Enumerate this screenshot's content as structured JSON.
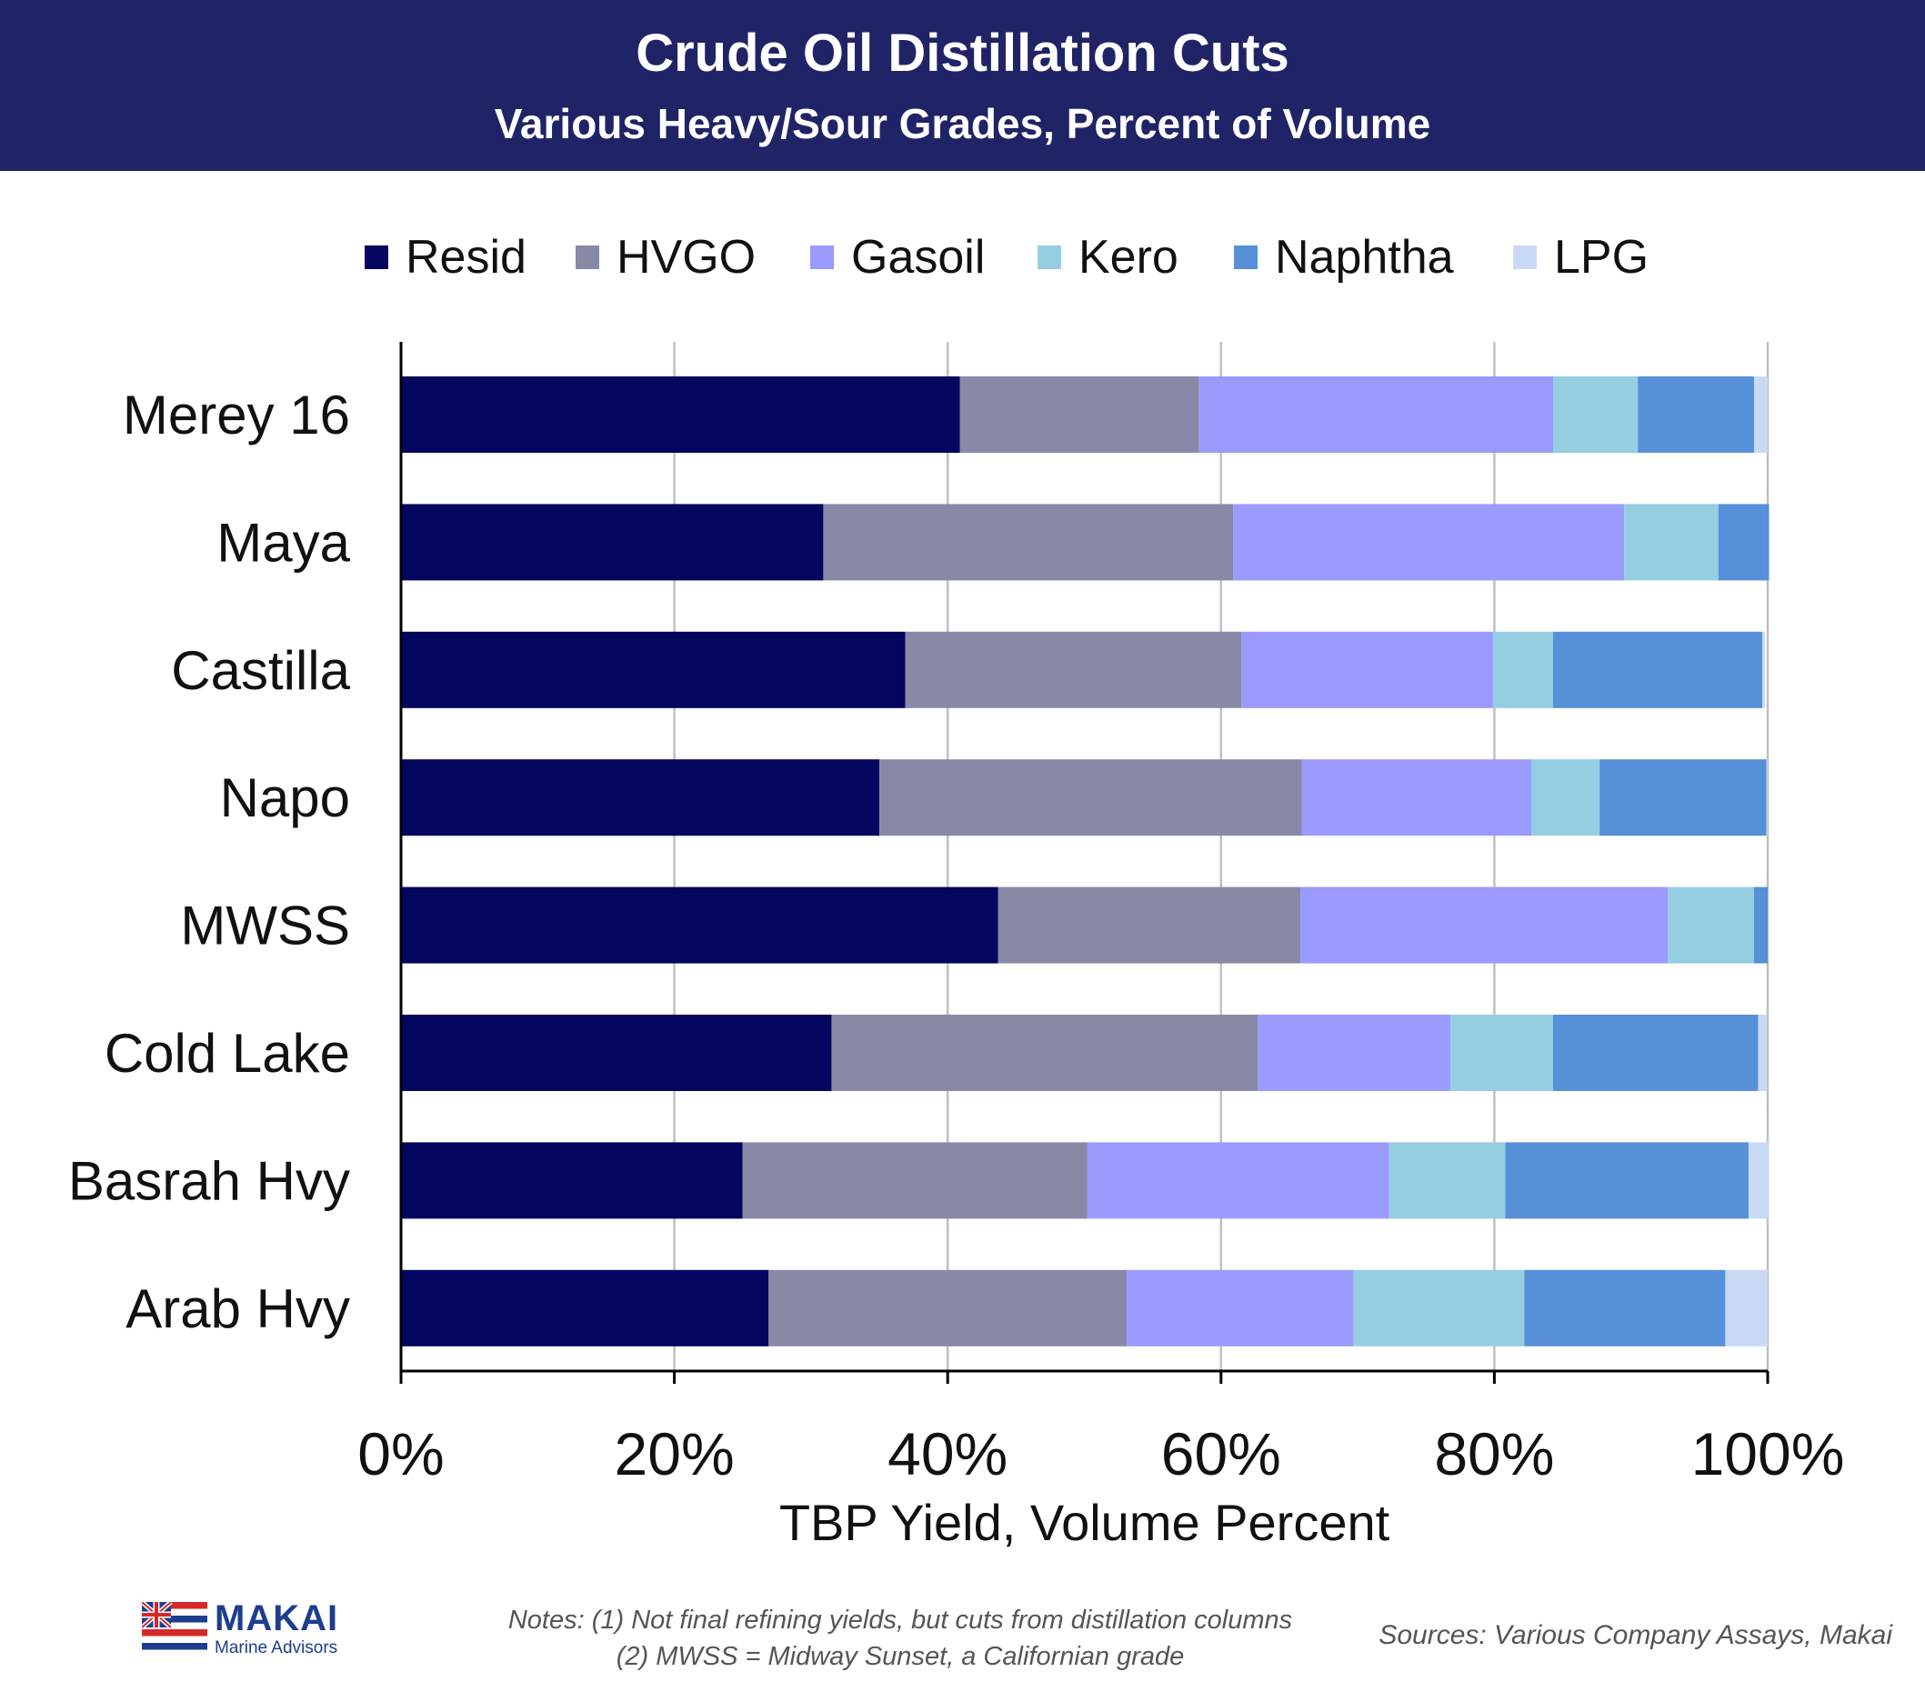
{
  "header": {
    "title": "Crude Oil Distillation Cuts",
    "subtitle": "Various Heavy/Sour Grades, Percent of Volume"
  },
  "chart_data": {
    "type": "bar",
    "orientation": "horizontal",
    "stacked": true,
    "title": "Crude Oil Distillation Cuts",
    "subtitle": "Various Heavy/Sour Grades, Percent of Volume",
    "xlabel": "TBP Yield, Volume Percent",
    "ylabel": "",
    "xlim": [
      0,
      100
    ],
    "x_ticks": [
      "0%",
      "20%",
      "40%",
      "60%",
      "80%",
      "100%"
    ],
    "x_tick_values": [
      0,
      20,
      40,
      60,
      80,
      100
    ],
    "grid": "vertical",
    "legend_position": "top",
    "categories": [
      "Merey 16",
      "Maya",
      "Castilla",
      "Napo",
      "MWSS",
      "Cold Lake",
      "Basrah Hvy",
      "Arab Hvy"
    ],
    "series": [
      {
        "name": "Resid",
        "color": "#04065f",
        "values": [
          40.9,
          30.9,
          36.9,
          35.0,
          43.7,
          31.5,
          25.0,
          26.9
        ]
      },
      {
        "name": "HVGO",
        "color": "#8889a6",
        "values": [
          17.5,
          30.0,
          24.6,
          30.9,
          22.1,
          31.2,
          25.2,
          26.2
        ]
      },
      {
        "name": "Gasoil",
        "color": "#9b9aff",
        "values": [
          25.9,
          28.6,
          18.4,
          16.8,
          26.9,
          14.1,
          22.1,
          16.6
        ]
      },
      {
        "name": "Kero",
        "color": "#95cee0",
        "values": [
          6.2,
          6.9,
          4.4,
          5.0,
          6.3,
          7.5,
          8.5,
          12.5
        ]
      },
      {
        "name": "Naphtha",
        "color": "#5590d9",
        "values": [
          8.5,
          3.7,
          15.3,
          12.2,
          1.0,
          15.0,
          17.8,
          14.7
        ]
      },
      {
        "name": "LPG",
        "color": "#c8daf3",
        "values": [
          1.0,
          0.0,
          0.2,
          0.1,
          0.0,
          0.6,
          1.5,
          3.1
        ]
      }
    ]
  },
  "notes": {
    "line1": "Notes: (1) Not final refining yields, but cuts from distillation columns",
    "line2": "(2)  MWSS = Midway Sunset, a Californian grade"
  },
  "sources": "Sources: Various Company Assays, Makai",
  "logo": {
    "name": "MAKAI",
    "tagline": "Marine Advisors"
  }
}
